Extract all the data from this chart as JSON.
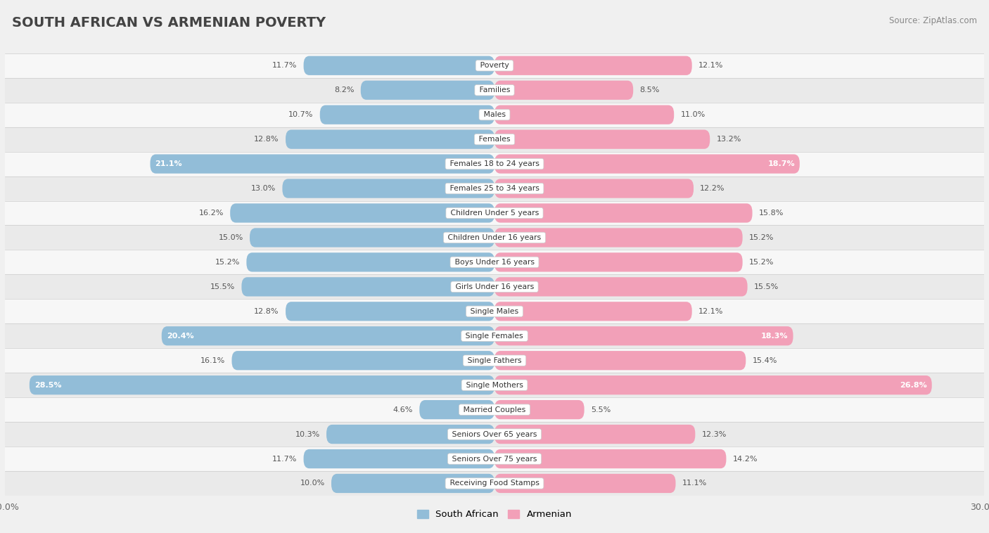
{
  "title": "SOUTH AFRICAN VS ARMENIAN POVERTY",
  "source": "Source: ZipAtlas.com",
  "categories": [
    "Poverty",
    "Families",
    "Males",
    "Females",
    "Females 18 to 24 years",
    "Females 25 to 34 years",
    "Children Under 5 years",
    "Children Under 16 years",
    "Boys Under 16 years",
    "Girls Under 16 years",
    "Single Males",
    "Single Females",
    "Single Fathers",
    "Single Mothers",
    "Married Couples",
    "Seniors Over 65 years",
    "Seniors Over 75 years",
    "Receiving Food Stamps"
  ],
  "south_african": [
    11.7,
    8.2,
    10.7,
    12.8,
    21.1,
    13.0,
    16.2,
    15.0,
    15.2,
    15.5,
    12.8,
    20.4,
    16.1,
    28.5,
    4.6,
    10.3,
    11.7,
    10.0
  ],
  "armenian": [
    12.1,
    8.5,
    11.0,
    13.2,
    18.7,
    12.2,
    15.8,
    15.2,
    15.2,
    15.5,
    12.1,
    18.3,
    15.4,
    26.8,
    5.5,
    12.3,
    14.2,
    11.1
  ],
  "max_val": 30.0,
  "blue_color": "#92BDD8",
  "pink_color": "#F2A0B8",
  "bar_height": 0.78,
  "bg_row_light": "#F7F7F7",
  "bg_row_dark": "#EAEAEA",
  "bg_main": "#F0F0F0"
}
